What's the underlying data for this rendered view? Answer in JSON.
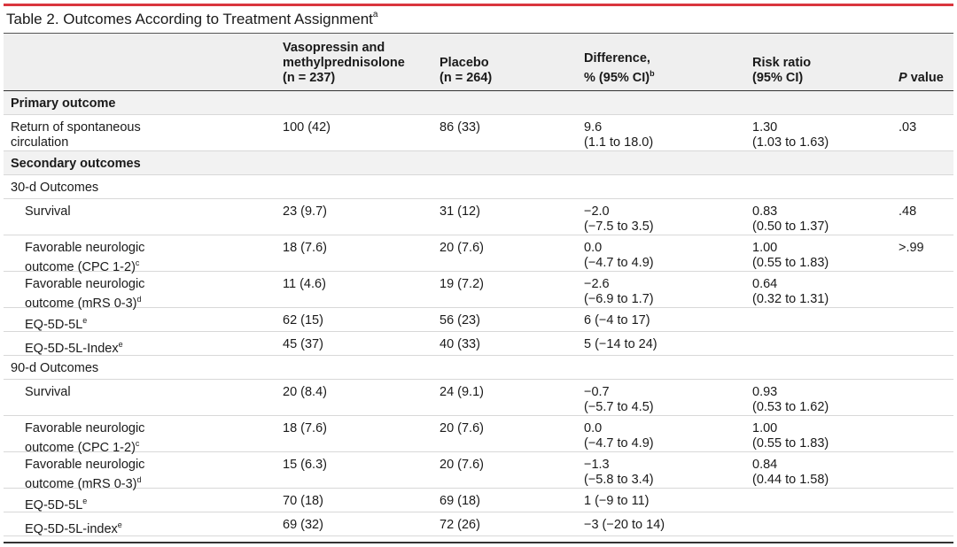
{
  "title": {
    "text": "Table 2. Outcomes According to Treatment Assignment",
    "sup": "a"
  },
  "headers": {
    "c1": [
      "Vasopressin and",
      "methylprednisolone",
      "(n = 237)"
    ],
    "c2": [
      "Placebo",
      "(n = 264)"
    ],
    "c3": [
      "Difference,",
      "% (95% CI)"
    ],
    "c3_sup": "b",
    "c4": [
      "Risk ratio",
      "(95% CI)"
    ],
    "c5_italic": "P",
    "c5_rest": " value"
  },
  "rows": [
    {
      "label": [
        "Primary outcome"
      ],
      "section": true
    },
    {
      "label": [
        "Return of spontaneous",
        "circulation"
      ],
      "c1": "100 (42)",
      "c2": "86 (33)",
      "c3": [
        "9.6",
        "(1.1 to 18.0)"
      ],
      "c4": [
        "1.30",
        "(1.03 to 1.63)"
      ],
      "c5": ".03"
    },
    {
      "label": [
        "Secondary outcomes"
      ],
      "section": true
    },
    {
      "label": [
        "30-d Outcomes"
      ]
    },
    {
      "label": [
        "Survival"
      ],
      "c1": "23 (9.7)",
      "c2": "31 (12)",
      "c3": [
        "−2.0",
        "(−7.5 to 3.5)"
      ],
      "c4": [
        "0.83",
        "(0.50 to 1.37)"
      ],
      "c5": ".48"
    },
    {
      "label": [
        "Favorable neurologic",
        "outcome (CPC 1-2)"
      ],
      "sup": "c",
      "c1": "18 (7.6)",
      "c2": "20 (7.6)",
      "c3": [
        "0.0",
        "(−4.7 to 4.9)"
      ],
      "c4": [
        "1.00",
        "(0.55 to 1.83)"
      ],
      "c5": ">.99"
    },
    {
      "label": [
        "Favorable neurologic",
        "outcome (mRS 0-3)"
      ],
      "sup": "d",
      "c1": "11 (4.6)",
      "c2": "19 (7.2)",
      "c3": [
        "−2.6",
        "(−6.9 to 1.7)"
      ],
      "c4": [
        "0.64",
        "(0.32 to 1.31)"
      ]
    },
    {
      "label": [
        "EQ-5D-5L"
      ],
      "sup": "e",
      "c1": "62 (15)",
      "c2": "56 (23)",
      "c3": [
        "6 (−4 to 17)"
      ]
    },
    {
      "label": [
        "EQ-5D-5L-Index"
      ],
      "sup": "e",
      "c1": "45 (37)",
      "c2": "40 (33)",
      "c3": [
        "5 (−14 to 24)"
      ]
    },
    {
      "label": [
        "90-d Outcomes"
      ]
    },
    {
      "label": [
        "Survival"
      ],
      "c1": "20 (8.4)",
      "c2": "24 (9.1)",
      "c3": [
        "−0.7",
        "(−5.7 to 4.5)"
      ],
      "c4": [
        "0.93",
        "(0.53 to 1.62)"
      ]
    },
    {
      "label": [
        "Favorable neurologic",
        "outcome (CPC 1-2)"
      ],
      "sup": "c",
      "c1": "18 (7.6)",
      "c2": "20 (7.6)",
      "c3": [
        "0.0",
        "(−4.7 to 4.9)"
      ],
      "c4": [
        "1.00",
        "(0.55 to 1.83)"
      ]
    },
    {
      "label": [
        "Favorable neurologic",
        "outcome (mRS 0-3)"
      ],
      "sup": "d",
      "c1": "15 (6.3)",
      "c2": "20 (7.6)",
      "c3": [
        "−1.3",
        "(−5.8 to 3.4)"
      ],
      "c4": [
        "0.84",
        "(0.44 to 1.58)"
      ]
    },
    {
      "label": [
        "EQ-5D-5L"
      ],
      "sup": "e",
      "c1": "70 (18)",
      "c2": "69 (18)",
      "c3": [
        "1 (−9 to 11)"
      ]
    },
    {
      "label": [
        "EQ-5D-5L-index"
      ],
      "sup": "e",
      "c1": "69 (32)",
      "c2": "72 (26)",
      "c3": [
        "−3 (−20 to 14)"
      ]
    }
  ]
}
